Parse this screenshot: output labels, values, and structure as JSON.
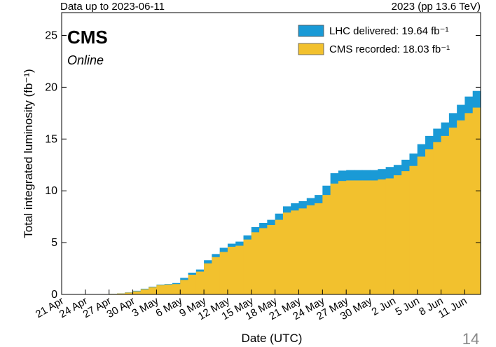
{
  "chart_data": {
    "type": "step_area",
    "top_left_note": "Data up to 2023-06-11",
    "top_right_note": "2023 (pp 13.6 TeV)",
    "experiment": "CMS",
    "status": "Online",
    "x_label": "Date (UTC)",
    "y_label": "Total integrated luminosity (fb⁻¹)",
    "categories": [
      "21 Apr",
      null,
      null,
      "24 Apr",
      null,
      null,
      "27 Apr",
      null,
      null,
      "30 Apr",
      null,
      null,
      "3 May",
      null,
      null,
      "6 May",
      null,
      null,
      "9 May",
      null,
      null,
      "12 May",
      null,
      null,
      "15 May",
      null,
      null,
      "18 May",
      null,
      null,
      "21 May",
      null,
      null,
      "24 May",
      null,
      null,
      "27 May",
      null,
      null,
      "30 May",
      null,
      null,
      "2 Jun",
      null,
      null,
      "5 Jun",
      null,
      null,
      "8 Jun",
      null,
      null,
      "11 Jun",
      null
    ],
    "series": [
      {
        "name": "LHC delivered: 19.64 fb⁻¹",
        "color": "#1a9ad6",
        "values": [
          0,
          0,
          0,
          0.01,
          0.02,
          0.03,
          0.05,
          0.1,
          0.2,
          0.35,
          0.55,
          0.75,
          0.95,
          1.0,
          1.1,
          1.6,
          2.1,
          2.4,
          3.3,
          3.9,
          4.5,
          4.9,
          5.1,
          5.7,
          6.5,
          6.9,
          7.2,
          7.8,
          8.5,
          8.8,
          9.0,
          9.3,
          9.6,
          10.5,
          11.7,
          11.95,
          12.0,
          12.0,
          12.0,
          12.0,
          12.1,
          12.3,
          12.5,
          13.0,
          13.6,
          14.5,
          15.3,
          16.0,
          16.6,
          17.5,
          18.3,
          19.1,
          19.64
        ]
      },
      {
        "name": "CMS recorded: 18.03 fb⁻¹",
        "color": "#f2c12e",
        "values": [
          0,
          0,
          0,
          0.01,
          0.02,
          0.03,
          0.05,
          0.09,
          0.18,
          0.3,
          0.5,
          0.7,
          0.9,
          0.95,
          1.0,
          1.4,
          1.9,
          2.2,
          3.0,
          3.6,
          4.1,
          4.6,
          4.7,
          5.3,
          6.0,
          6.4,
          6.7,
          7.2,
          7.9,
          8.1,
          8.3,
          8.6,
          8.8,
          9.6,
          10.7,
          10.95,
          11.0,
          11.0,
          11.0,
          11.0,
          11.1,
          11.2,
          11.5,
          11.9,
          12.4,
          13.3,
          14.0,
          14.7,
          15.3,
          16.1,
          16.8,
          17.5,
          18.03
        ]
      }
    ],
    "ylim": [
      0,
      27.2
    ],
    "yticks": [
      0,
      5,
      10,
      15,
      20,
      25
    ],
    "legend": "upper right"
  },
  "slide_number": "14"
}
